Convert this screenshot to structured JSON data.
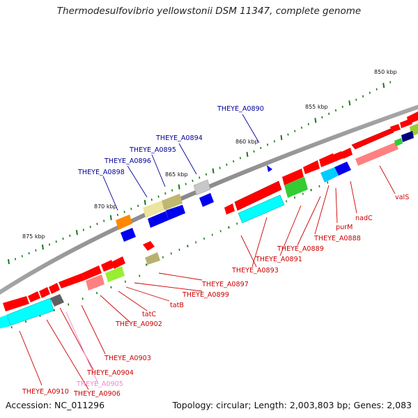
{
  "title": "Thermodesulfovibrio yellowstonii DSM 11347, complete genome",
  "footer": {
    "accession": "Accession: NC_011296",
    "summary": "Topology: circular; Length: 2,003,803 bp; Genes: 2,083"
  },
  "colors": {
    "backbone": "#8a8a8a",
    "tick": "#1a7a1a",
    "label_red": "#cc0000",
    "label_blue": "#000099",
    "label_pink": "#ee88cc",
    "feature_palette": [
      "#ff0000",
      "#00ffff",
      "#33cc33",
      "#0000ee",
      "#ff8080",
      "#e8e090",
      "#b8b070",
      "#c0c0c0",
      "#ff8800",
      "#99ee33",
      "#606060",
      "#000080"
    ]
  },
  "scale_labels": [
    "850 kbp",
    "855 kbp",
    "860 kbp",
    "865 kbp",
    "870 kbp",
    "875 kbp"
  ],
  "gene_labels": {
    "THEYE_A0890": "THEYE_A0890",
    "THEYE_A0894": "THEYE_A0894",
    "THEYE_A0895": "THEYE_A0895",
    "THEYE_A0896": "THEYE_A0896",
    "THEYE_A0898": "THEYE_A0898",
    "valS": "valS",
    "nadC": "nadC",
    "purM": "purM",
    "THEYE_A0888": "THEYE_A0888",
    "THEYE_A0889": "THEYE_A0889",
    "THEYE_A0891": "THEYE_A0891",
    "THEYE_A0893": "THEYE_A0893",
    "THEYE_A0897": "THEYE_A0897",
    "THEYE_A0899": "THEYE_A0899",
    "tatB": "tatB",
    "tatC": "tatC",
    "THEYE_A0902": "THEYE_A0902",
    "THEYE_A0903": "THEYE_A0903",
    "THEYE_A0904": "THEYE_A0904",
    "THEYE_A0905": "THEYE_A0905",
    "THEYE_A0906": "THEYE_A0906",
    "THEYE_A0910": "THEYE_A0910"
  }
}
